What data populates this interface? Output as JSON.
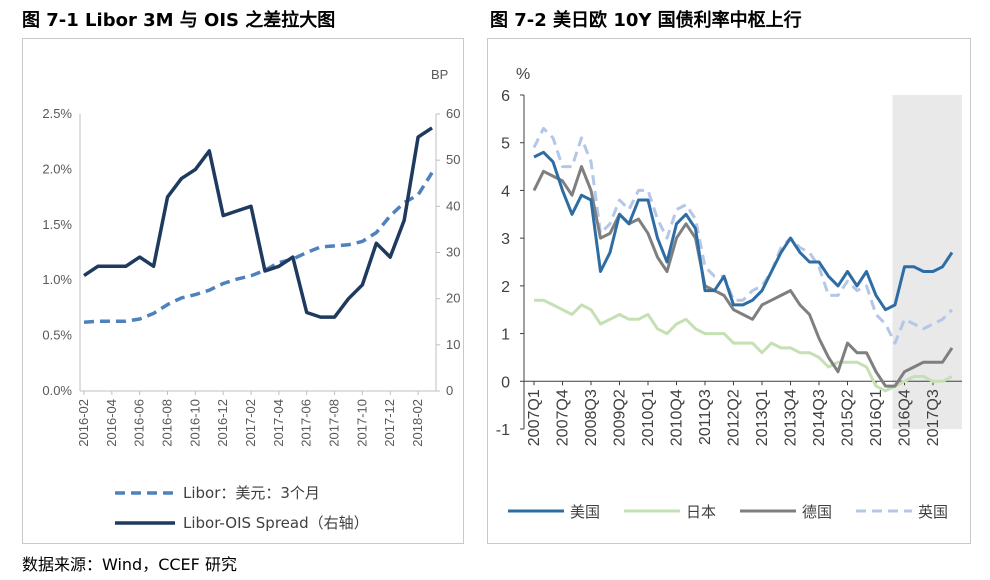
{
  "left": {
    "title": "图 7-1 Libor 3M 与 OIS 之差拉大图",
    "y2_unit": "BP",
    "y1_ticks": [
      "0.0%",
      "0.5%",
      "1.0%",
      "1.5%",
      "2.0%",
      "2.5%"
    ],
    "y2_ticks": [
      "0",
      "10",
      "20",
      "30",
      "40",
      "50",
      "60"
    ],
    "x_ticks": [
      "2016-02",
      "2016-04",
      "2016-06",
      "2016-08",
      "2016-10",
      "2016-12",
      "2017-02",
      "2017-04",
      "2017-06",
      "2017-08",
      "2017-10",
      "2017-12",
      "2018-02"
    ],
    "legend": [
      "Libor：美元：3个月",
      "Libor-OIS Spread（右轴）"
    ]
  },
  "right": {
    "title": "图 7-2  美日欧 10Y 国债利率中枢上行",
    "y_unit": "%",
    "y_ticks": [
      "-1",
      "0",
      "1",
      "2",
      "3",
      "4",
      "5",
      "6"
    ],
    "x_ticks": [
      "2007Q1",
      "2007Q4",
      "2008Q3",
      "2009Q2",
      "2010Q1",
      "2010Q4",
      "2011Q3",
      "2012Q2",
      "2013Q1",
      "2013Q4",
      "2014Q3",
      "2015Q2",
      "2016Q1",
      "2016Q4",
      "2017Q3"
    ],
    "legend": [
      "美国",
      "日本",
      "德国",
      "英国"
    ]
  },
  "source": "数据来源：Wind，CCEF 研究",
  "chart_data": [
    {
      "type": "line",
      "title": "图 7-1 Libor 3M 与 OIS 之差拉大图",
      "x": [
        "2016-02",
        "2016-03",
        "2016-04",
        "2016-05",
        "2016-06",
        "2016-07",
        "2016-08",
        "2016-09",
        "2016-10",
        "2016-11",
        "2016-12",
        "2017-01",
        "2017-02",
        "2017-03",
        "2017-04",
        "2017-05",
        "2017-06",
        "2017-07",
        "2017-08",
        "2017-09",
        "2017-10",
        "2017-11",
        "2017-12",
        "2018-01",
        "2018-02",
        "2018-03"
      ],
      "y1_range": [
        0,
        2.5
      ],
      "y2_range": [
        0,
        60
      ],
      "y2_unit": "BP",
      "series": [
        {
          "name": "Libor：美元：3个月",
          "axis": "left",
          "unit": "%",
          "style": "dashed",
          "color": "#4f81bd",
          "values": [
            0.62,
            0.63,
            0.63,
            0.63,
            0.65,
            0.7,
            0.78,
            0.84,
            0.87,
            0.91,
            0.97,
            1.01,
            1.04,
            1.09,
            1.16,
            1.19,
            1.25,
            1.3,
            1.31,
            1.32,
            1.35,
            1.43,
            1.58,
            1.7,
            1.77,
            1.97
          ]
        },
        {
          "name": "Libor-OIS Spread（右轴）",
          "axis": "right",
          "unit": "BP",
          "style": "solid",
          "color": "#1f3a5f",
          "values": [
            25,
            27,
            27,
            27,
            29,
            27,
            42,
            46,
            48,
            52,
            38,
            39,
            40,
            26,
            27,
            29,
            17,
            16,
            16,
            20,
            23,
            32,
            29,
            37,
            55,
            57
          ]
        }
      ]
    },
    {
      "type": "line",
      "title": "图 7-2  美日欧 10Y 国债利率中枢上行",
      "x": [
        "2007Q1",
        "2007Q2",
        "2007Q3",
        "2007Q4",
        "2008Q1",
        "2008Q2",
        "2008Q3",
        "2008Q4",
        "2009Q1",
        "2009Q2",
        "2009Q3",
        "2009Q4",
        "2010Q1",
        "2010Q2",
        "2010Q3",
        "2010Q4",
        "2011Q1",
        "2011Q2",
        "2011Q3",
        "2011Q4",
        "2012Q1",
        "2012Q2",
        "2012Q3",
        "2012Q4",
        "2013Q1",
        "2013Q2",
        "2013Q3",
        "2013Q4",
        "2014Q1",
        "2014Q2",
        "2014Q3",
        "2014Q4",
        "2015Q1",
        "2015Q2",
        "2015Q3",
        "2015Q4",
        "2016Q1",
        "2016Q2",
        "2016Q3",
        "2016Q4",
        "2017Q1",
        "2017Q2",
        "2017Q3",
        "2017Q4",
        "2018Q1"
      ],
      "y_range": [
        -1,
        6
      ],
      "y_unit": "%",
      "shaded_from": "2016Q4",
      "series": [
        {
          "name": "美国",
          "color": "#2e6da4",
          "style": "solid",
          "values": [
            4.7,
            4.8,
            4.6,
            4.0,
            3.5,
            3.9,
            3.8,
            2.3,
            2.7,
            3.5,
            3.3,
            3.8,
            3.8,
            3.0,
            2.5,
            3.3,
            3.5,
            3.2,
            1.9,
            1.9,
            2.2,
            1.6,
            1.6,
            1.7,
            1.9,
            2.3,
            2.7,
            3.0,
            2.7,
            2.5,
            2.5,
            2.2,
            2.0,
            2.3,
            2.0,
            2.3,
            1.8,
            1.5,
            1.6,
            2.4,
            2.4,
            2.3,
            2.3,
            2.4,
            2.7
          ]
        },
        {
          "name": "日本",
          "color": "#c5e0b4",
          "style": "solid",
          "values": [
            1.7,
            1.7,
            1.6,
            1.5,
            1.4,
            1.6,
            1.5,
            1.2,
            1.3,
            1.4,
            1.3,
            1.3,
            1.4,
            1.1,
            1.0,
            1.2,
            1.3,
            1.1,
            1.0,
            1.0,
            1.0,
            0.8,
            0.8,
            0.8,
            0.6,
            0.8,
            0.7,
            0.7,
            0.6,
            0.6,
            0.5,
            0.3,
            0.4,
            0.4,
            0.4,
            0.3,
            -0.1,
            -0.2,
            -0.1,
            0.0,
            0.1,
            0.1,
            0.0,
            0.0,
            0.1
          ]
        },
        {
          "name": "德国",
          "color": "#7f7f7f",
          "style": "solid",
          "values": [
            4.0,
            4.4,
            4.3,
            4.2,
            3.9,
            4.5,
            4.0,
            3.0,
            3.1,
            3.5,
            3.3,
            3.4,
            3.1,
            2.6,
            2.3,
            3.0,
            3.3,
            3.0,
            2.0,
            1.9,
            1.8,
            1.5,
            1.4,
            1.3,
            1.6,
            1.7,
            1.8,
            1.9,
            1.6,
            1.4,
            0.9,
            0.5,
            0.2,
            0.8,
            0.6,
            0.6,
            0.2,
            -0.1,
            -0.1,
            0.2,
            0.3,
            0.4,
            0.4,
            0.4,
            0.7
          ]
        },
        {
          "name": "英国",
          "color": "#b4c7e7",
          "style": "dashed",
          "values": [
            4.9,
            5.3,
            5.1,
            4.5,
            4.5,
            5.1,
            4.6,
            3.1,
            3.3,
            3.8,
            3.6,
            4.0,
            4.0,
            3.4,
            3.0,
            3.6,
            3.7,
            3.4,
            2.4,
            2.2,
            2.2,
            1.7,
            1.7,
            1.9,
            2.0,
            2.3,
            2.8,
            3.0,
            2.8,
            2.7,
            2.4,
            1.8,
            1.8,
            2.1,
            1.9,
            2.0,
            1.4,
            1.2,
            0.8,
            1.3,
            1.2,
            1.1,
            1.2,
            1.3,
            1.5
          ]
        }
      ]
    }
  ]
}
